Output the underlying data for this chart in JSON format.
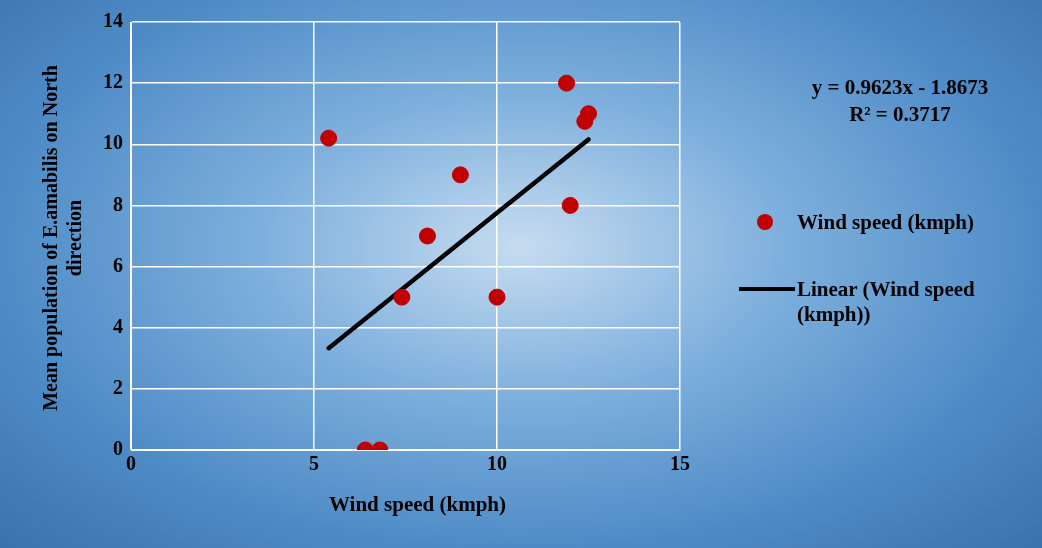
{
  "chart_data": {
    "type": "scatter",
    "xlabel": "Wind speed (kmph)",
    "ylabel": "Mean population of E.amabilis on North direction",
    "xlim": [
      0,
      15
    ],
    "xticks": [
      0,
      5,
      10,
      15
    ],
    "ylim": [
      0,
      14
    ],
    "yticks": [
      0,
      2,
      4,
      6,
      8,
      10,
      12,
      14
    ],
    "grid": true,
    "legend": "right",
    "marker": "circle",
    "annotations": [
      "y = 0.9623x - 1.8673",
      "R² = 0.3717"
    ],
    "series": [
      {
        "name": "Wind speed (kmph)",
        "color": "#c00000",
        "x": [
          5.4,
          6.4,
          6.8,
          7.4,
          8.1,
          9.0,
          10.0,
          11.9,
          12.0,
          12.5,
          12.4
        ],
        "values": [
          10.2,
          0,
          0,
          5,
          7,
          9,
          5,
          12,
          8,
          11,
          10.75
        ]
      },
      {
        "name": "Linear (Wind speed (kmph))",
        "type": "line",
        "marker": "none",
        "line_style": "solid",
        "color": "#000000",
        "x": [
          5.4,
          12.5
        ],
        "values": [
          3.33,
          10.16
        ]
      }
    ]
  }
}
